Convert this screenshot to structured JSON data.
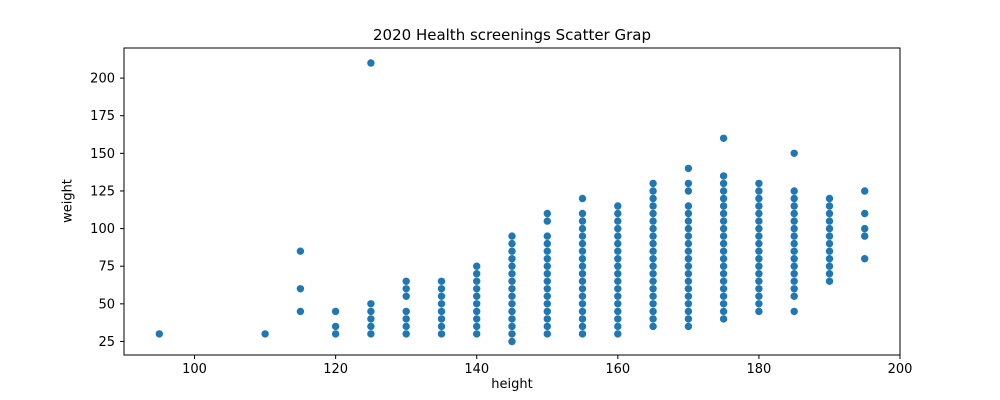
{
  "figure": {
    "title": "2020 Health screenings Scatter Grap",
    "xlabel": "height",
    "ylabel": "weight"
  },
  "chart_data": {
    "type": "scatter",
    "title": "2020 Health screenings Scatter Grap",
    "xlabel": "height",
    "ylabel": "weight",
    "xlim": [
      90,
      200
    ],
    "ylim": [
      16,
      220
    ],
    "xticks": [
      100,
      120,
      140,
      160,
      180,
      200
    ],
    "yticks": [
      25,
      50,
      75,
      100,
      125,
      150,
      175,
      200
    ],
    "grid": false,
    "legend_position": "none",
    "marker_color": "#1f77b4",
    "columns": [
      {
        "height": 95,
        "weights": [
          30
        ]
      },
      {
        "height": 110,
        "weights": [
          30
        ]
      },
      {
        "height": 115,
        "weights": [
          45,
          60,
          85
        ]
      },
      {
        "height": 120,
        "weights": [
          30,
          35,
          45
        ]
      },
      {
        "height": 125,
        "weights": [
          30,
          35,
          40,
          45,
          50,
          210
        ]
      },
      {
        "height": 130,
        "weights": [
          30,
          35,
          40,
          45,
          55,
          60,
          65
        ]
      },
      {
        "height": 135,
        "weights": [
          30,
          35,
          40,
          45,
          50,
          55,
          60,
          65
        ]
      },
      {
        "height": 140,
        "weights": [
          30,
          35,
          40,
          45,
          50,
          55,
          60,
          65,
          70,
          75
        ]
      },
      {
        "height": 145,
        "weights": [
          25,
          30,
          35,
          40,
          45,
          50,
          55,
          60,
          65,
          70,
          75,
          80,
          85,
          90,
          95
        ]
      },
      {
        "height": 150,
        "weights": [
          30,
          35,
          40,
          45,
          50,
          55,
          60,
          65,
          70,
          75,
          80,
          85,
          90,
          95,
          105,
          110
        ]
      },
      {
        "height": 155,
        "weights": [
          30,
          35,
          40,
          45,
          50,
          55,
          60,
          65,
          70,
          75,
          80,
          85,
          90,
          95,
          100,
          105,
          110,
          120
        ]
      },
      {
        "height": 160,
        "weights": [
          30,
          35,
          40,
          45,
          50,
          55,
          60,
          65,
          70,
          75,
          80,
          85,
          90,
          95,
          100,
          105,
          110,
          115
        ]
      },
      {
        "height": 165,
        "weights": [
          35,
          40,
          45,
          50,
          55,
          60,
          65,
          70,
          75,
          80,
          85,
          90,
          95,
          100,
          105,
          110,
          115,
          120,
          125,
          130
        ]
      },
      {
        "height": 170,
        "weights": [
          35,
          40,
          45,
          50,
          55,
          60,
          65,
          70,
          75,
          80,
          85,
          90,
          95,
          100,
          105,
          110,
          115,
          125,
          130,
          140
        ]
      },
      {
        "height": 175,
        "weights": [
          40,
          45,
          50,
          55,
          60,
          65,
          70,
          75,
          80,
          85,
          90,
          95,
          100,
          105,
          110,
          115,
          120,
          125,
          130,
          135,
          160
        ]
      },
      {
        "height": 180,
        "weights": [
          45,
          50,
          55,
          60,
          65,
          70,
          75,
          80,
          85,
          90,
          95,
          100,
          105,
          110,
          115,
          120,
          125,
          130
        ]
      },
      {
        "height": 185,
        "weights": [
          45,
          55,
          60,
          65,
          70,
          75,
          80,
          85,
          90,
          95,
          100,
          105,
          110,
          115,
          120,
          125,
          150
        ]
      },
      {
        "height": 190,
        "weights": [
          65,
          70,
          75,
          80,
          85,
          90,
          95,
          100,
          105,
          110,
          115,
          120
        ]
      },
      {
        "height": 195,
        "weights": [
          80,
          95,
          100,
          110,
          125
        ]
      }
    ]
  }
}
